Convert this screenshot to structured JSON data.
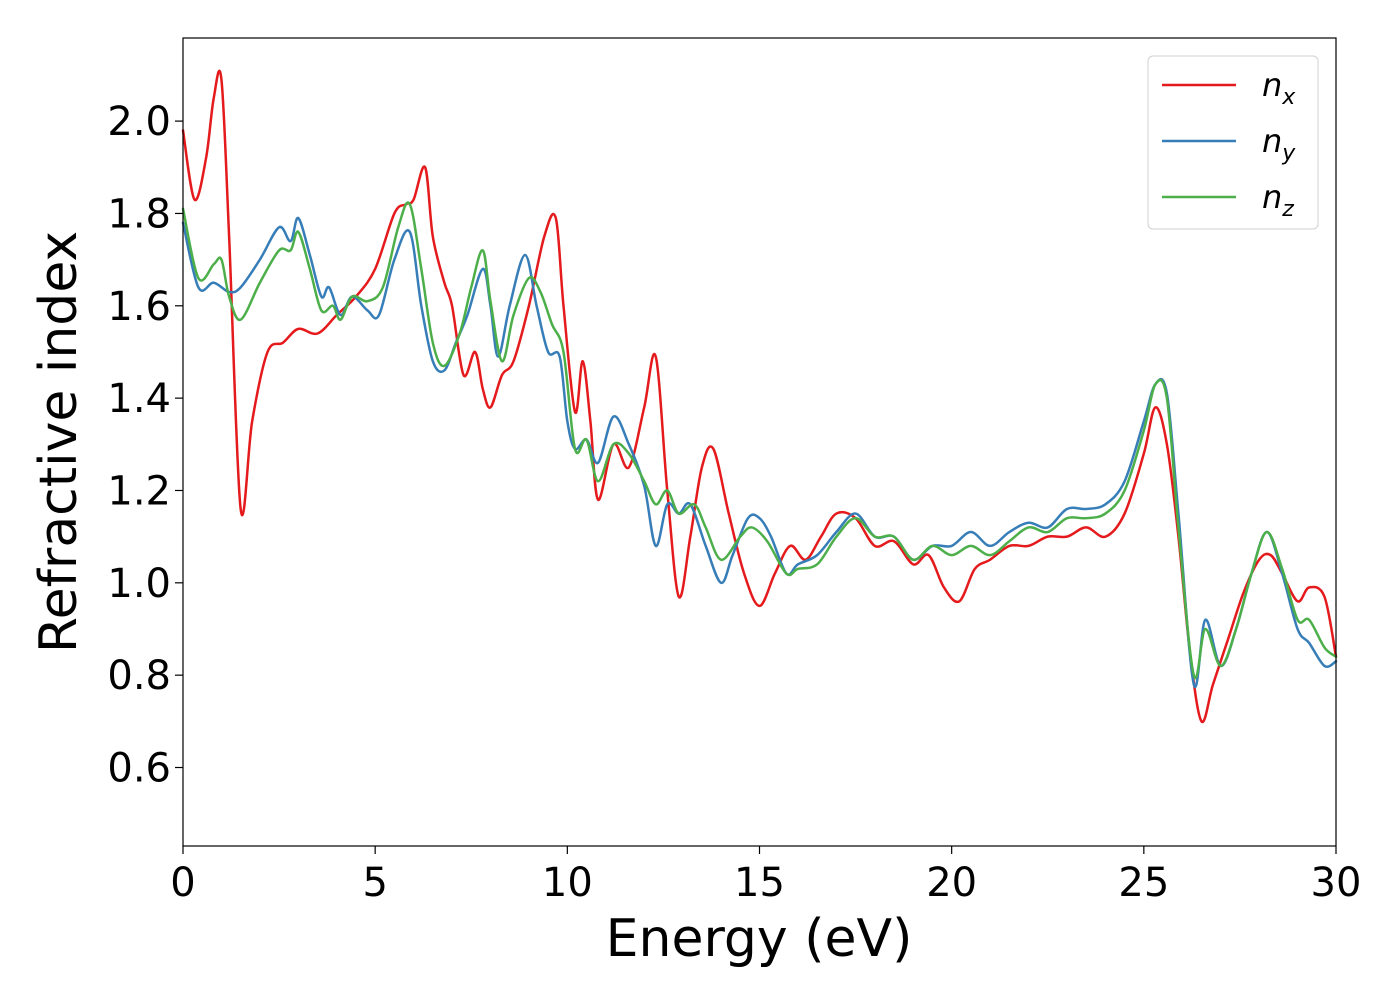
{
  "chart_data": {
    "type": "line",
    "title": "",
    "xlabel": "Energy (eV)",
    "ylabel": "Refractive index",
    "xlim": [
      0,
      30
    ],
    "ylim": [
      0.43,
      2.18
    ],
    "xticks": [
      0,
      5,
      10,
      15,
      20,
      25,
      30
    ],
    "yticks": [
      0.6,
      0.8,
      1.0,
      1.2,
      1.4,
      1.6,
      1.8,
      2.0
    ],
    "xtick_labels": [
      "0",
      "5",
      "10",
      "15",
      "20",
      "25",
      "30"
    ],
    "ytick_labels": [
      "0.6",
      "0.8",
      "1.0",
      "1.2",
      "1.4",
      "1.6",
      "1.8",
      "2.0"
    ],
    "grid": false,
    "legend_position": "top-right",
    "series": [
      {
        "name": "n",
        "subscript": "x",
        "color": "#e41a1c",
        "points": [
          [
            0.0,
            1.98
          ],
          [
            0.3,
            1.83
          ],
          [
            0.6,
            1.92
          ],
          [
            0.8,
            2.05
          ],
          [
            1.0,
            2.09
          ],
          [
            1.2,
            1.75
          ],
          [
            1.5,
            1.16
          ],
          [
            1.8,
            1.35
          ],
          [
            2.2,
            1.5
          ],
          [
            2.6,
            1.52
          ],
          [
            3.0,
            1.55
          ],
          [
            3.5,
            1.54
          ],
          [
            4.0,
            1.58
          ],
          [
            4.5,
            1.62
          ],
          [
            5.0,
            1.68
          ],
          [
            5.5,
            1.8
          ],
          [
            5.8,
            1.82
          ],
          [
            6.0,
            1.83
          ],
          [
            6.3,
            1.9
          ],
          [
            6.5,
            1.75
          ],
          [
            6.8,
            1.65
          ],
          [
            7.0,
            1.6
          ],
          [
            7.3,
            1.45
          ],
          [
            7.6,
            1.5
          ],
          [
            7.8,
            1.42
          ],
          [
            8.0,
            1.38
          ],
          [
            8.3,
            1.45
          ],
          [
            8.6,
            1.48
          ],
          [
            9.0,
            1.6
          ],
          [
            9.4,
            1.75
          ],
          [
            9.7,
            1.79
          ],
          [
            9.9,
            1.6
          ],
          [
            10.2,
            1.37
          ],
          [
            10.4,
            1.48
          ],
          [
            10.6,
            1.35
          ],
          [
            10.8,
            1.18
          ],
          [
            11.2,
            1.3
          ],
          [
            11.6,
            1.25
          ],
          [
            12.0,
            1.38
          ],
          [
            12.3,
            1.49
          ],
          [
            12.6,
            1.2
          ],
          [
            12.9,
            0.97
          ],
          [
            13.2,
            1.1
          ],
          [
            13.5,
            1.25
          ],
          [
            13.8,
            1.29
          ],
          [
            14.2,
            1.15
          ],
          [
            14.6,
            1.02
          ],
          [
            15.0,
            0.95
          ],
          [
            15.4,
            1.02
          ],
          [
            15.8,
            1.08
          ],
          [
            16.2,
            1.05
          ],
          [
            16.6,
            1.1
          ],
          [
            17.0,
            1.15
          ],
          [
            17.5,
            1.14
          ],
          [
            18.0,
            1.08
          ],
          [
            18.5,
            1.09
          ],
          [
            19.0,
            1.04
          ],
          [
            19.4,
            1.06
          ],
          [
            19.8,
            0.99
          ],
          [
            20.2,
            0.96
          ],
          [
            20.6,
            1.03
          ],
          [
            21.0,
            1.05
          ],
          [
            21.5,
            1.08
          ],
          [
            22.0,
            1.08
          ],
          [
            22.5,
            1.1
          ],
          [
            23.0,
            1.1
          ],
          [
            23.5,
            1.12
          ],
          [
            24.0,
            1.1
          ],
          [
            24.5,
            1.15
          ],
          [
            25.0,
            1.28
          ],
          [
            25.3,
            1.38
          ],
          [
            25.6,
            1.3
          ],
          [
            25.9,
            1.1
          ],
          [
            26.2,
            0.85
          ],
          [
            26.5,
            0.7
          ],
          [
            26.8,
            0.78
          ],
          [
            27.2,
            0.88
          ],
          [
            27.6,
            0.98
          ],
          [
            28.0,
            1.05
          ],
          [
            28.3,
            1.06
          ],
          [
            28.6,
            1.02
          ],
          [
            29.0,
            0.96
          ],
          [
            29.3,
            0.99
          ],
          [
            29.7,
            0.97
          ],
          [
            30.0,
            0.84
          ]
        ]
      },
      {
        "name": "n",
        "subscript": "y",
        "color": "#377eb8",
        "points": [
          [
            0.0,
            1.78
          ],
          [
            0.4,
            1.64
          ],
          [
            0.8,
            1.65
          ],
          [
            1.2,
            1.63
          ],
          [
            1.5,
            1.64
          ],
          [
            2.0,
            1.7
          ],
          [
            2.5,
            1.77
          ],
          [
            2.8,
            1.74
          ],
          [
            3.0,
            1.79
          ],
          [
            3.3,
            1.71
          ],
          [
            3.6,
            1.62
          ],
          [
            3.8,
            1.64
          ],
          [
            4.1,
            1.58
          ],
          [
            4.4,
            1.62
          ],
          [
            4.8,
            1.59
          ],
          [
            5.1,
            1.58
          ],
          [
            5.5,
            1.7
          ],
          [
            5.9,
            1.76
          ],
          [
            6.2,
            1.6
          ],
          [
            6.5,
            1.48
          ],
          [
            6.8,
            1.46
          ],
          [
            7.1,
            1.52
          ],
          [
            7.4,
            1.58
          ],
          [
            7.8,
            1.68
          ],
          [
            8.0,
            1.6
          ],
          [
            8.2,
            1.49
          ],
          [
            8.5,
            1.6
          ],
          [
            8.9,
            1.71
          ],
          [
            9.2,
            1.6
          ],
          [
            9.5,
            1.5
          ],
          [
            9.8,
            1.49
          ],
          [
            10.0,
            1.35
          ],
          [
            10.2,
            1.29
          ],
          [
            10.5,
            1.31
          ],
          [
            10.8,
            1.26
          ],
          [
            11.2,
            1.36
          ],
          [
            11.6,
            1.3
          ],
          [
            12.0,
            1.21
          ],
          [
            12.3,
            1.08
          ],
          [
            12.6,
            1.17
          ],
          [
            12.9,
            1.15
          ],
          [
            13.2,
            1.17
          ],
          [
            13.6,
            1.08
          ],
          [
            14.0,
            1.0
          ],
          [
            14.3,
            1.06
          ],
          [
            14.7,
            1.14
          ],
          [
            15.0,
            1.14
          ],
          [
            15.3,
            1.1
          ],
          [
            15.7,
            1.02
          ],
          [
            16.0,
            1.04
          ],
          [
            16.5,
            1.06
          ],
          [
            17.0,
            1.11
          ],
          [
            17.5,
            1.15
          ],
          [
            18.0,
            1.1
          ],
          [
            18.5,
            1.1
          ],
          [
            19.0,
            1.05
          ],
          [
            19.5,
            1.08
          ],
          [
            20.0,
            1.08
          ],
          [
            20.5,
            1.11
          ],
          [
            21.0,
            1.08
          ],
          [
            21.5,
            1.11
          ],
          [
            22.0,
            1.13
          ],
          [
            22.5,
            1.12
          ],
          [
            23.0,
            1.16
          ],
          [
            23.5,
            1.16
          ],
          [
            24.0,
            1.17
          ],
          [
            24.5,
            1.22
          ],
          [
            25.0,
            1.35
          ],
          [
            25.3,
            1.43
          ],
          [
            25.6,
            1.41
          ],
          [
            25.9,
            1.15
          ],
          [
            26.3,
            0.78
          ],
          [
            26.6,
            0.92
          ],
          [
            27.0,
            0.82
          ],
          [
            27.4,
            0.9
          ],
          [
            27.8,
            1.02
          ],
          [
            28.2,
            1.11
          ],
          [
            28.6,
            1.02
          ],
          [
            29.0,
            0.9
          ],
          [
            29.3,
            0.87
          ],
          [
            29.7,
            0.82
          ],
          [
            30.0,
            0.83
          ]
        ]
      },
      {
        "name": "n",
        "subscript": "z",
        "color": "#4daf4a",
        "points": [
          [
            0.0,
            1.81
          ],
          [
            0.4,
            1.66
          ],
          [
            0.8,
            1.69
          ],
          [
            1.0,
            1.7
          ],
          [
            1.2,
            1.62
          ],
          [
            1.5,
            1.57
          ],
          [
            2.0,
            1.65
          ],
          [
            2.5,
            1.72
          ],
          [
            2.8,
            1.72
          ],
          [
            3.0,
            1.76
          ],
          [
            3.3,
            1.68
          ],
          [
            3.6,
            1.59
          ],
          [
            3.9,
            1.6
          ],
          [
            4.1,
            1.57
          ],
          [
            4.4,
            1.62
          ],
          [
            4.8,
            1.61
          ],
          [
            5.2,
            1.64
          ],
          [
            5.6,
            1.77
          ],
          [
            5.9,
            1.82
          ],
          [
            6.2,
            1.68
          ],
          [
            6.5,
            1.52
          ],
          [
            6.8,
            1.47
          ],
          [
            7.2,
            1.54
          ],
          [
            7.5,
            1.64
          ],
          [
            7.8,
            1.72
          ],
          [
            8.0,
            1.61
          ],
          [
            8.3,
            1.48
          ],
          [
            8.6,
            1.58
          ],
          [
            9.0,
            1.66
          ],
          [
            9.3,
            1.63
          ],
          [
            9.6,
            1.56
          ],
          [
            9.9,
            1.5
          ],
          [
            10.2,
            1.29
          ],
          [
            10.5,
            1.31
          ],
          [
            10.8,
            1.22
          ],
          [
            11.2,
            1.3
          ],
          [
            11.6,
            1.28
          ],
          [
            12.0,
            1.22
          ],
          [
            12.3,
            1.17
          ],
          [
            12.6,
            1.2
          ],
          [
            12.9,
            1.15
          ],
          [
            13.3,
            1.17
          ],
          [
            13.6,
            1.12
          ],
          [
            14.0,
            1.05
          ],
          [
            14.5,
            1.1
          ],
          [
            14.8,
            1.12
          ],
          [
            15.2,
            1.09
          ],
          [
            15.7,
            1.02
          ],
          [
            16.0,
            1.03
          ],
          [
            16.5,
            1.04
          ],
          [
            17.0,
            1.1
          ],
          [
            17.5,
            1.14
          ],
          [
            18.0,
            1.1
          ],
          [
            18.5,
            1.1
          ],
          [
            19.0,
            1.05
          ],
          [
            19.5,
            1.08
          ],
          [
            20.0,
            1.06
          ],
          [
            20.5,
            1.08
          ],
          [
            21.0,
            1.06
          ],
          [
            21.5,
            1.09
          ],
          [
            22.0,
            1.12
          ],
          [
            22.5,
            1.11
          ],
          [
            23.0,
            1.14
          ],
          [
            23.5,
            1.14
          ],
          [
            24.0,
            1.15
          ],
          [
            24.5,
            1.2
          ],
          [
            25.0,
            1.33
          ],
          [
            25.3,
            1.43
          ],
          [
            25.6,
            1.4
          ],
          [
            25.9,
            1.12
          ],
          [
            26.3,
            0.8
          ],
          [
            26.6,
            0.9
          ],
          [
            27.0,
            0.82
          ],
          [
            27.4,
            0.9
          ],
          [
            27.8,
            1.02
          ],
          [
            28.2,
            1.11
          ],
          [
            28.6,
            1.03
          ],
          [
            29.0,
            0.92
          ],
          [
            29.3,
            0.92
          ],
          [
            29.7,
            0.86
          ],
          [
            30.0,
            0.84
          ]
        ]
      }
    ]
  }
}
